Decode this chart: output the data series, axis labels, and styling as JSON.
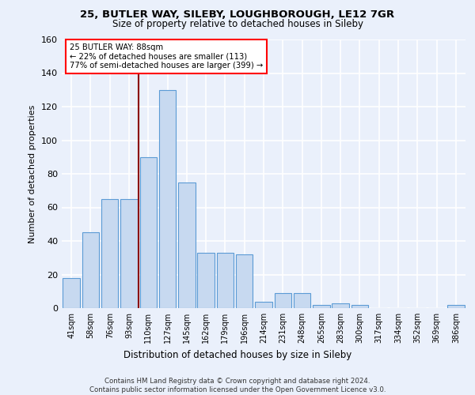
{
  "title1": "25, BUTLER WAY, SILEBY, LOUGHBOROUGH, LE12 7GR",
  "title2": "Size of property relative to detached houses in Sileby",
  "xlabel": "Distribution of detached houses by size in Sileby",
  "ylabel": "Number of detached properties",
  "categories": [
    "41sqm",
    "58sqm",
    "76sqm",
    "93sqm",
    "110sqm",
    "127sqm",
    "145sqm",
    "162sqm",
    "179sqm",
    "196sqm",
    "214sqm",
    "231sqm",
    "248sqm",
    "265sqm",
    "283sqm",
    "300sqm",
    "317sqm",
    "334sqm",
    "352sqm",
    "369sqm",
    "386sqm"
  ],
  "values": [
    18,
    45,
    65,
    65,
    90,
    130,
    75,
    33,
    33,
    32,
    4,
    9,
    9,
    2,
    3,
    2,
    0,
    0,
    0,
    0,
    2
  ],
  "bar_color": "#c7d9f0",
  "bar_edge_color": "#5b9bd5",
  "vline_x": 3.5,
  "vline_color": "#8b0000",
  "annotation_title": "25 BUTLER WAY: 88sqm",
  "annotation_line1": "← 22% of detached houses are smaller (113)",
  "annotation_line2": "77% of semi-detached houses are larger (399) →",
  "annotation_box_color": "white",
  "annotation_box_edge_color": "red",
  "ylim": [
    0,
    160
  ],
  "yticks": [
    0,
    20,
    40,
    60,
    80,
    100,
    120,
    140,
    160
  ],
  "footer": "Contains HM Land Registry data © Crown copyright and database right 2024.\nContains public sector information licensed under the Open Government Licence v3.0.",
  "bg_color": "#eaf0fb",
  "plot_bg_color": "#eaf0fb",
  "grid_color": "white"
}
